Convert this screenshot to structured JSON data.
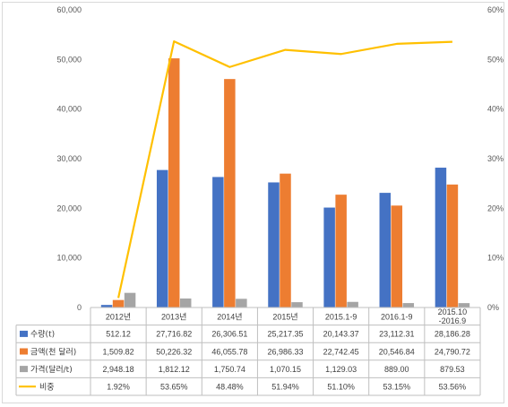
{
  "chart_data": {
    "type": "bar",
    "categories": [
      "2012년",
      "2013년",
      "2014년",
      "2015년",
      "2015.1-9",
      "2016.1-9",
      "2015.10\n-2016.9"
    ],
    "series": [
      {
        "name": "수량(t)",
        "kind": "bar",
        "axis": "left",
        "color": "#4472c4",
        "values": [
          512.12,
          27716.82,
          26306.51,
          25217.35,
          20143.37,
          23112.31,
          28186.28
        ],
        "labels": [
          "512.12",
          "27,716.82",
          "26,306.51",
          "25,217.35",
          "20,143.37",
          "23,112.31",
          "28,186.28"
        ]
      },
      {
        "name": "금액(천 달러)",
        "kind": "bar",
        "axis": "left",
        "color": "#ed7d31",
        "values": [
          1509.82,
          50226.32,
          46055.78,
          26986.33,
          22742.45,
          20546.84,
          24790.72
        ],
        "labels": [
          "1,509.82",
          "50,226.32",
          "46,055.78",
          "26,986.33",
          "22,742.45",
          "20,546.84",
          "24,790.72"
        ]
      },
      {
        "name": "가격(달러/t)",
        "kind": "bar",
        "axis": "left",
        "color": "#a5a5a5",
        "values": [
          2948.18,
          1812.12,
          1750.74,
          1070.15,
          1129.03,
          889.0,
          879.53
        ],
        "labels": [
          "2,948.18",
          "1,812.12",
          "1,750.74",
          "1,070.15",
          "1,129.03",
          "889.00",
          "879.53"
        ]
      },
      {
        "name": "비중",
        "kind": "line",
        "axis": "right",
        "color": "#ffc000",
        "values": [
          1.92,
          53.65,
          48.48,
          51.94,
          51.1,
          53.15,
          53.56
        ],
        "labels": [
          "1.92%",
          "53.65%",
          "48.48%",
          "51.94%",
          "51.10%",
          "53.15%",
          "53.56%"
        ]
      }
    ],
    "y_left": {
      "min": 0,
      "max": 60000,
      "step": 10000,
      "tick_labels": [
        "0",
        "10,000",
        "20,000",
        "30,000",
        "40,000",
        "50,000",
        "60,000"
      ]
    },
    "y_right": {
      "min": 0,
      "max": 60,
      "step": 10,
      "tick_labels": [
        "0%",
        "10%",
        "20%",
        "30%",
        "40%",
        "50%",
        "60%"
      ]
    },
    "grid": false,
    "legend": "data-table",
    "title": "",
    "xlabel": "",
    "ylabel": ""
  }
}
